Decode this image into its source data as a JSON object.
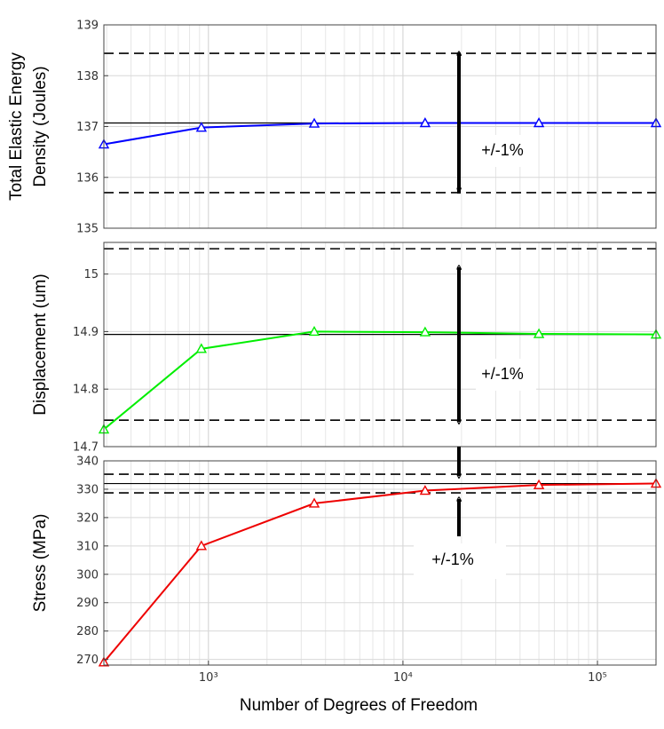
{
  "chart_data": {
    "type": "line",
    "x_scale": "log",
    "xlabel": "Number of Degrees of Freedom",
    "xlim": [
      290,
      200000
    ],
    "x_major_ticks": [
      {
        "value": 1000,
        "label": "10³"
      },
      {
        "value": 10000,
        "label": "10⁴"
      },
      {
        "value": 100000,
        "label": "10⁵"
      }
    ],
    "panels": [
      {
        "id": "energy",
        "ylabel_lines": [
          "Total Elastic Energy",
          "Density (Joules)"
        ],
        "ylim": [
          135,
          139
        ],
        "yticks": [
          135,
          136,
          137,
          138,
          139
        ],
        "color": "#0000ff",
        "x": [
          290,
          920,
          3500,
          13000,
          50000,
          200000
        ],
        "y": [
          136.65,
          136.98,
          137.06,
          137.07,
          137.07,
          137.07
        ],
        "reference": 137.07,
        "band": [
          135.7,
          138.44
        ],
        "annotation": "+/-1%"
      },
      {
        "id": "displacement",
        "ylabel_lines": [
          "Displacement (um)"
        ],
        "ylim": [
          14.7,
          15.055
        ],
        "yticks": [
          14.7,
          14.8,
          14.9,
          15
        ],
        "ytick_labels": [
          "14.7",
          "14.8",
          "14.9",
          "15"
        ],
        "color": "#00ee00",
        "x": [
          290,
          920,
          3500,
          13000,
          50000,
          200000
        ],
        "y": [
          14.73,
          14.87,
          14.9,
          14.899,
          14.896,
          14.895
        ],
        "reference": 14.895,
        "band": [
          14.746,
          15.044
        ],
        "annotation": "+/-1%"
      },
      {
        "id": "stress",
        "ylabel_lines": [
          "Stress (MPa)"
        ],
        "ylim": [
          268,
          340
        ],
        "yticks": [
          270,
          280,
          290,
          300,
          310,
          320,
          330,
          340
        ],
        "color": "#ee0000",
        "x": [
          290,
          920,
          3500,
          13000,
          50000,
          200000
        ],
        "y": [
          269,
          310,
          325,
          329.5,
          331.5,
          332
        ],
        "reference": 332,
        "band": [
          328.7,
          335.3
        ],
        "annotation": "+/-1%"
      }
    ]
  }
}
